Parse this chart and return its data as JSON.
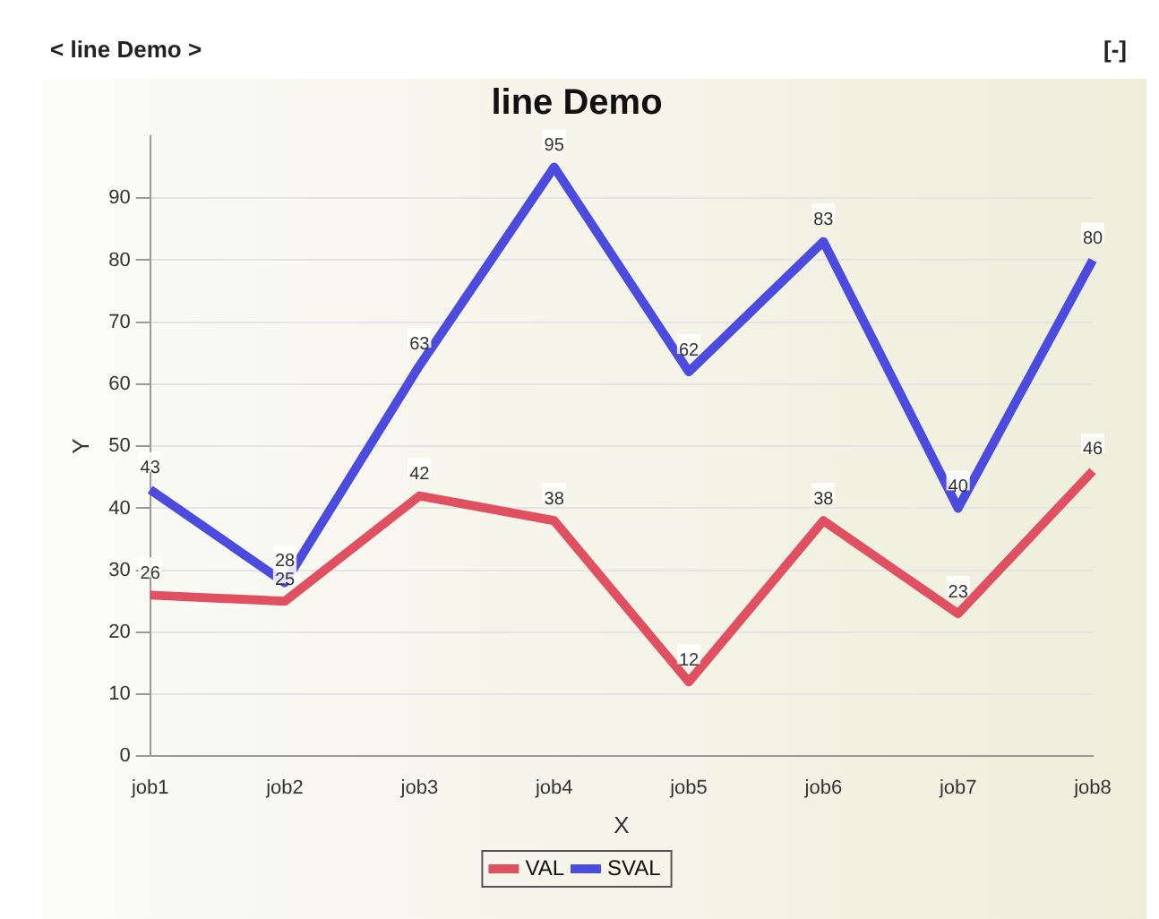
{
  "chart_data": {
    "type": "line",
    "title": "line Demo",
    "xlabel": "X",
    "ylabel": "Y",
    "annotations": [
      "< line Demo >",
      "[-]"
    ],
    "categories": [
      "job1",
      "job2",
      "job3",
      "job4",
      "job5",
      "job6",
      "job7",
      "job8"
    ],
    "series": [
      {
        "name": "VAL",
        "color": "#e05060",
        "values": [
          26,
          25,
          42,
          38,
          12,
          38,
          23,
          46
        ]
      },
      {
        "name": "SVAL",
        "color": "#4b4be0",
        "values": [
          43,
          28,
          63,
          95,
          62,
          83,
          40,
          80
        ]
      }
    ],
    "ylim": [
      0,
      100
    ],
    "yticks": [
      0,
      10,
      20,
      30,
      40,
      50,
      60,
      70,
      80,
      90
    ],
    "grid": "y",
    "legend": "bottom",
    "data_labels": true,
    "marker": "none",
    "line_style": "solid"
  }
}
